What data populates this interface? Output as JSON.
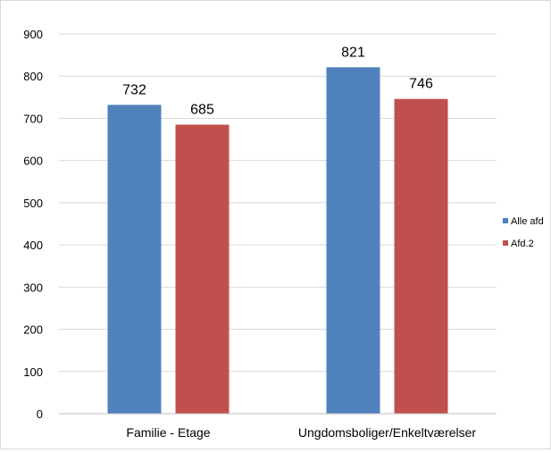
{
  "chart_data": {
    "type": "bar",
    "categories": [
      "Familie - Etage",
      "Ungdomsboliger/Enkeltværelser"
    ],
    "series": [
      {
        "name": "Alle afd",
        "values": [
          732,
          821
        ],
        "color": "#4f81bd"
      },
      {
        "name": "Afd.2",
        "values": [
          685,
          746
        ],
        "color": "#c0504d"
      }
    ],
    "ylim": [
      0,
      900
    ],
    "yticks": [
      0,
      100,
      200,
      300,
      400,
      500,
      600,
      700,
      800,
      900
    ],
    "grid": true,
    "legend_position": "right",
    "data_labels": true,
    "title": "",
    "xlabel": "",
    "ylabel": ""
  }
}
